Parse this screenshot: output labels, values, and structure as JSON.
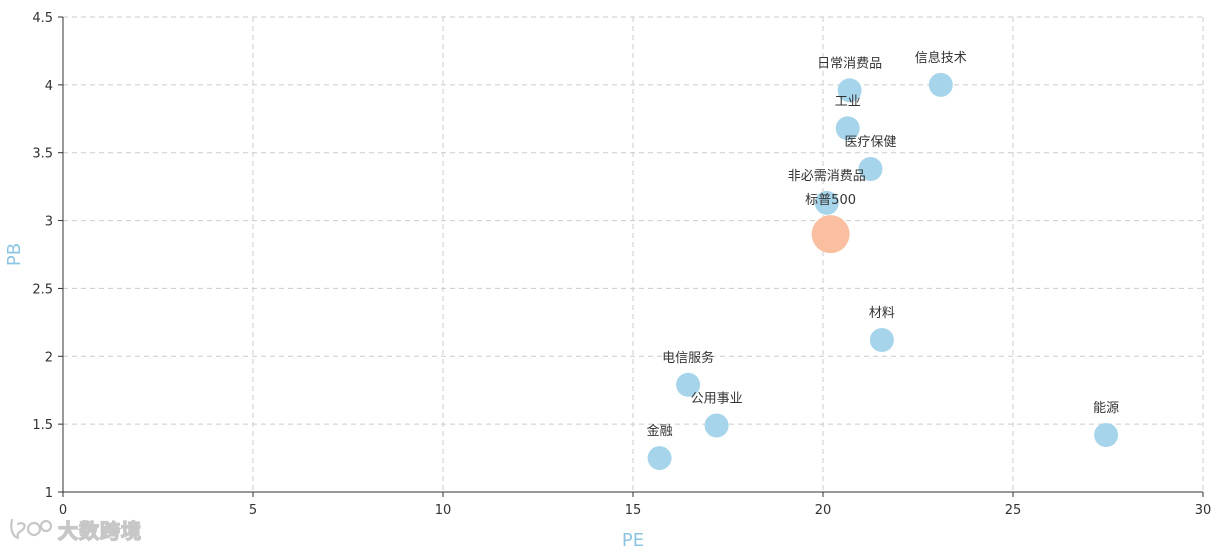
{
  "chart_data": {
    "type": "scatter",
    "title": "",
    "xlabel": "PE",
    "ylabel": "PB",
    "xlim": [
      0,
      30
    ],
    "ylim": [
      1,
      4.5
    ],
    "x_ticks": [
      "0",
      "5",
      "10",
      "15",
      "20",
      "25",
      "30"
    ],
    "y_ticks": [
      "1",
      "1.5",
      "2",
      "2.5",
      "3",
      "3.5",
      "4",
      "4.5"
    ],
    "grid": true,
    "points": [
      {
        "label": "日常消费品",
        "x": 20.7,
        "y": 3.96,
        "highlight": false
      },
      {
        "label": "信息技术",
        "x": 23.1,
        "y": 4.0,
        "highlight": false
      },
      {
        "label": "工业",
        "x": 20.65,
        "y": 3.68,
        "highlight": false
      },
      {
        "label": "医疗保健",
        "x": 21.25,
        "y": 3.38,
        "highlight": false
      },
      {
        "label": "非必需消费品",
        "x": 20.1,
        "y": 3.13,
        "highlight": false
      },
      {
        "label": "标普500",
        "x": 20.2,
        "y": 2.9,
        "highlight": true
      },
      {
        "label": "材料",
        "x": 21.55,
        "y": 2.12,
        "highlight": false
      },
      {
        "label": "电信服务",
        "x": 16.45,
        "y": 1.79,
        "highlight": false
      },
      {
        "label": "公用事业",
        "x": 17.2,
        "y": 1.49,
        "highlight": false
      },
      {
        "label": "金融",
        "x": 15.7,
        "y": 1.25,
        "highlight": false
      },
      {
        "label": "能源",
        "x": 27.45,
        "y": 1.42,
        "highlight": false
      }
    ]
  },
  "colors": {
    "point": "#a6d4ea",
    "highlight_point": "#f9bfa0",
    "axis_title": "#8cc5e3",
    "axis_line": "#333333",
    "grid": "#cccccc"
  },
  "watermark": {
    "text": "大数跨境",
    "logo_icon": "kuajing-logo-icon"
  }
}
